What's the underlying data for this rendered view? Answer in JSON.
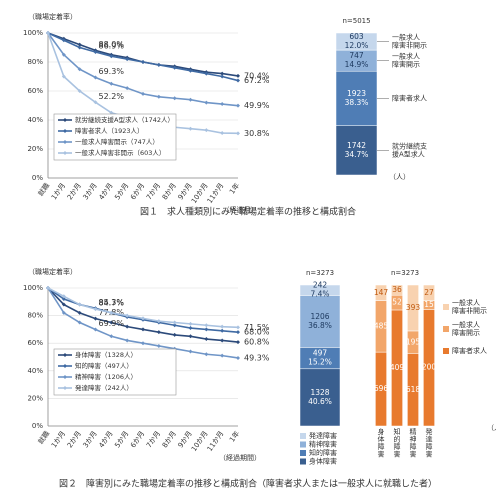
{
  "chart_data": [
    {
      "type": "line",
      "caption": "図１　求人種類別にみた職場定着率の推移と構成割合",
      "y_label": "（職場定着率）",
      "x_label": "（経過月）",
      "categories": [
        "就職",
        "1か月",
        "2か月",
        "3か月",
        "4か月",
        "5か月",
        "6か月",
        "7か月",
        "8か月",
        "9か月",
        "10か月",
        "11か月",
        "1年"
      ],
      "ylim": [
        0,
        100
      ],
      "yticks": [
        {
          "value": 0,
          "label": "0%"
        },
        {
          "value": 20,
          "label": "20%"
        },
        {
          "value": 40,
          "label": "40%"
        },
        {
          "value": 60,
          "label": "60%"
        },
        {
          "value": 80,
          "label": "80%"
        },
        {
          "value": 100,
          "label": "100%"
        }
      ],
      "grid": true,
      "legend": "lower-left",
      "series": [
        {
          "name": "就労継続支援A型求人（1742人）",
          "color": "#2c4a7a",
          "values": [
            100,
            96,
            92,
            88.0,
            85,
            83,
            80,
            78,
            77,
            75,
            73,
            72,
            70.4
          ],
          "value_labels": [
            null,
            null,
            null,
            "88.0%",
            null,
            null,
            null,
            null,
            null,
            null,
            null,
            null,
            "70.4%"
          ]
        },
        {
          "name": "障害者求人（1923人）",
          "color": "#3f6aa3",
          "values": [
            100,
            95,
            90,
            86.9,
            84,
            82,
            80,
            78,
            76,
            74,
            72,
            70,
            67.2
          ],
          "value_labels": [
            null,
            null,
            null,
            "86.9%",
            null,
            null,
            null,
            null,
            null,
            null,
            null,
            null,
            "67.2%"
          ]
        },
        {
          "name": "一般求人障害開示（747人）",
          "color": "#6f95c7",
          "values": [
            100,
            85,
            75,
            69.3,
            65,
            62,
            58,
            56,
            55,
            54,
            52,
            51,
            49.9
          ],
          "value_labels": [
            null,
            null,
            null,
            "69.3%",
            null,
            null,
            null,
            null,
            null,
            null,
            null,
            null,
            "49.9%"
          ]
        },
        {
          "name": "一般求人障害非開示（603人）",
          "color": "#a9c2e0",
          "values": [
            100,
            70,
            60,
            52.2,
            45,
            42,
            39,
            37,
            35,
            34,
            33,
            31,
            30.8
          ],
          "value_labels": [
            null,
            null,
            null,
            "52.2%",
            null,
            null,
            null,
            null,
            null,
            null,
            null,
            null,
            "30.8%"
          ]
        }
      ]
    },
    {
      "type": "stacked_bar",
      "subtitle": "n=5015",
      "unit": "（人）",
      "legend": "right-leader",
      "categories": [
        null
      ],
      "series": [
        {
          "name": "就労継続支援A型求人",
          "color": "#3a5f8f",
          "values": [
            1742
          ],
          "share_labels": [
            "34.7%"
          ]
        },
        {
          "name": "障害者求人",
          "color": "#4f7db5",
          "values": [
            1923
          ],
          "share_labels": [
            "38.3%"
          ]
        },
        {
          "name": "一般求人障害開示",
          "color": "#8fb1d9",
          "values": [
            747
          ],
          "share_labels": [
            "14.9%"
          ]
        },
        {
          "name": "一般求人障害非開示",
          "color": "#c5d7ec",
          "values": [
            603
          ],
          "share_labels": [
            "12.0%"
          ]
        }
      ]
    },
    {
      "type": "line",
      "caption": "図２　障害別にみた職場定着率の推移と構成割合（障害者求人または一般求人に就職した者）",
      "y_label": "（職場定着率）",
      "x_label": "（経過期間）",
      "categories": [
        "就職",
        "1か月",
        "2か月",
        "3か月",
        "4か月",
        "5か月",
        "6か月",
        "7か月",
        "8か月",
        "9か月",
        "10か月",
        "11か月",
        "1年"
      ],
      "ylim": [
        0,
        100
      ],
      "yticks": [
        {
          "value": 0,
          "label": "0%"
        },
        {
          "value": 20,
          "label": "20%"
        },
        {
          "value": 40,
          "label": "40%"
        },
        {
          "value": 60,
          "label": "60%"
        },
        {
          "value": 80,
          "label": "80%"
        },
        {
          "value": 100,
          "label": "100%"
        }
      ],
      "grid": true,
      "legend": "lower-left",
      "series": [
        {
          "name": "身体障害（1328人）",
          "color": "#2c4a7a",
          "values": [
            100,
            88,
            82,
            77.8,
            75,
            72,
            70,
            68,
            66,
            65,
            63,
            62,
            60.8
          ],
          "value_labels": [
            null,
            null,
            null,
            "77.8%",
            null,
            null,
            null,
            null,
            null,
            null,
            null,
            null,
            "60.8%"
          ]
        },
        {
          "name": "知的障害（497人）",
          "color": "#3f6aa3",
          "values": [
            100,
            92,
            88,
            85.3,
            82,
            79,
            77,
            75,
            73,
            71,
            70,
            69,
            68.0
          ],
          "value_labels": [
            null,
            null,
            null,
            "85.3%",
            null,
            null,
            null,
            null,
            null,
            null,
            null,
            null,
            "68.0%"
          ]
        },
        {
          "name": "精神障害（1206人）",
          "color": "#6f95c7",
          "values": [
            100,
            82,
            75,
            69.9,
            65,
            62,
            60,
            58,
            56,
            54,
            52,
            51,
            49.3
          ],
          "value_labels": [
            null,
            null,
            null,
            "69.9%",
            null,
            null,
            null,
            null,
            null,
            null,
            null,
            null,
            "49.3%"
          ]
        },
        {
          "name": "発達障害（242人）",
          "color": "#a9c2e0",
          "values": [
            100,
            94,
            88,
            84.7,
            82,
            80,
            78,
            76,
            75,
            74,
            73,
            72,
            71.5
          ],
          "value_labels": [
            null,
            null,
            null,
            "84.7%",
            null,
            null,
            null,
            null,
            null,
            null,
            null,
            null,
            "71.5%"
          ]
        }
      ]
    },
    {
      "type": "stacked_bar",
      "subtitle": "n=3273",
      "legend": "bottom",
      "categories": [
        null
      ],
      "series": [
        {
          "name": "身体障害",
          "color": "#3a5f8f",
          "values": [
            1328
          ],
          "share_labels": [
            "40.6%"
          ]
        },
        {
          "name": "知的障害",
          "color": "#4f7db5",
          "values": [
            497
          ],
          "share_labels": [
            "15.2%"
          ]
        },
        {
          "name": "精神障害",
          "color": "#8fb1d9",
          "values": [
            1206
          ],
          "share_labels": [
            "36.8%"
          ]
        },
        {
          "name": "発達障害",
          "color": "#c5d7ec",
          "values": [
            242
          ],
          "share_labels": [
            "7.4%"
          ]
        }
      ]
    },
    {
      "type": "stacked_bar",
      "subtitle": "n=3273",
      "unit": "（人）",
      "legend": "right",
      "categories": [
        "身体障害",
        "知的障害",
        "精神障害",
        "発達障害"
      ],
      "series": [
        {
          "name": "障害者求人",
          "color": "#e87a2e",
          "values": [
            696,
            409,
            618,
            200
          ]
        },
        {
          "name": "一般求人障害開示",
          "color": "#f2a66a",
          "values": [
            485,
            52,
            195,
            15
          ]
        },
        {
          "name": "一般求人障害非開示",
          "color": "#f8d2b0",
          "values": [
            147,
            36,
            393,
            27
          ]
        }
      ]
    }
  ]
}
